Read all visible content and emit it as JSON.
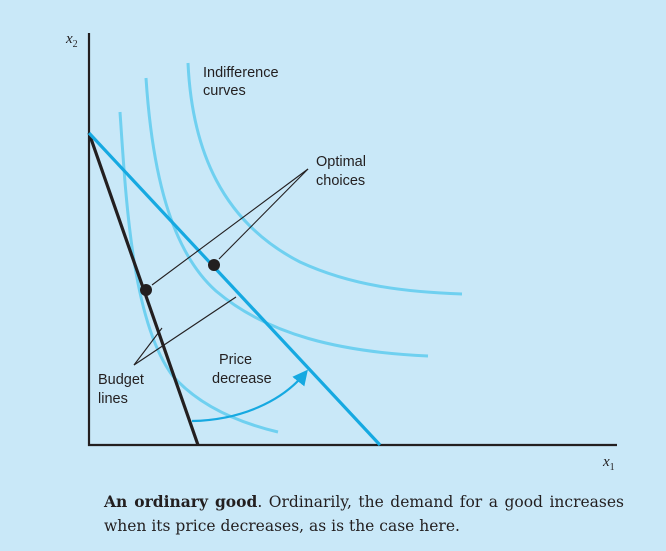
{
  "figure": {
    "axis_x_letter": "x",
    "axis_x_subscript": "1",
    "axis_y_letter": "x",
    "axis_y_subscript": "2",
    "indifference_label": [
      "Indifference",
      "curves"
    ],
    "optimal_label": [
      "Optimal",
      "choices"
    ],
    "budget_label": [
      "Budget",
      "lines"
    ],
    "price_label": [
      "Price",
      "decrease"
    ]
  },
  "caption": {
    "title": "An ordinary good",
    "body": ". Ordinarily, the demand for a good increases when its price decreases, as is the case here."
  },
  "colors": {
    "background": "#c9e8f8",
    "indifference_curve": "#6fd0f0",
    "new_budget_line": "#16a9e1",
    "old_budget_line": "#231f20"
  }
}
